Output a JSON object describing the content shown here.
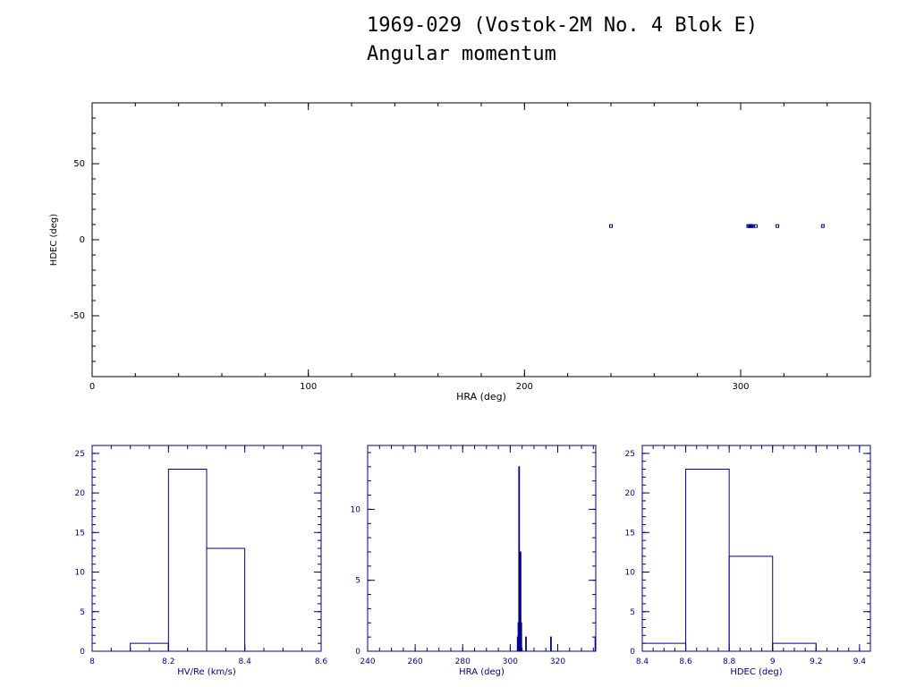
{
  "title": "1969-029 (Vostok-2M No. 4 Blok E)",
  "subtitle": "Angular momentum",
  "colors": {
    "axes_main": "#000000",
    "axes_hist": "#00008b",
    "data": "#00008b"
  },
  "chart_data": [
    {
      "type": "scatter",
      "xlabel": "HRA (deg)",
      "ylabel": "HDEC (deg)",
      "xlim": [
        0,
        360
      ],
      "ylim": [
        -90,
        90
      ],
      "xticks": [
        0,
        100,
        200,
        300
      ],
      "yticks": [
        -50,
        0,
        50
      ],
      "points": [
        {
          "x": 240,
          "y": 9
        },
        {
          "x": 303.5,
          "y": 9
        },
        {
          "x": 304,
          "y": 9
        },
        {
          "x": 304.5,
          "y": 9
        },
        {
          "x": 305,
          "y": 9
        },
        {
          "x": 305.5,
          "y": 9
        },
        {
          "x": 307,
          "y": 9
        },
        {
          "x": 317,
          "y": 9
        },
        {
          "x": 338,
          "y": 9
        }
      ]
    },
    {
      "type": "bar",
      "xlabel": "HV/Re (km/s)",
      "ylabel": "",
      "xlim": [
        8,
        8.6
      ],
      "ylim": [
        0,
        26
      ],
      "xticks": [
        8,
        8.2,
        8.4,
        8.6
      ],
      "xticklabels": [
        "8",
        "8.2",
        "8.4",
        "8.6"
      ],
      "yticks": [
        0,
        5,
        10,
        15,
        20,
        25
      ],
      "bins": [
        {
          "from": 8.1,
          "to": 8.2,
          "count": 1
        },
        {
          "from": 8.2,
          "to": 8.3,
          "count": 23
        },
        {
          "from": 8.3,
          "to": 8.4,
          "count": 13
        }
      ]
    },
    {
      "type": "bar",
      "xlabel": "HRA (deg)",
      "ylabel": "",
      "xlim": [
        240,
        336
      ],
      "ylim": [
        0,
        14.5
      ],
      "xticks": [
        240,
        260,
        280,
        300,
        320
      ],
      "xticklabels": [
        "240",
        "260",
        "280",
        "300",
        "320"
      ],
      "yticks": [
        0,
        5,
        10
      ],
      "bins": [
        {
          "from": 303.0,
          "to": 303.3,
          "count": 1
        },
        {
          "from": 303.3,
          "to": 303.6,
          "count": 2
        },
        {
          "from": 303.6,
          "to": 303.9,
          "count": 13
        },
        {
          "from": 303.9,
          "to": 304.2,
          "count": 7
        },
        {
          "from": 304.2,
          "to": 304.5,
          "count": 7
        },
        {
          "from": 304.5,
          "to": 304.8,
          "count": 2
        },
        {
          "from": 306.5,
          "to": 306.8,
          "count": 1
        },
        {
          "from": 317.0,
          "to": 317.3,
          "count": 1
        },
        {
          "from": 335.7,
          "to": 336.0,
          "count": 1
        }
      ]
    },
    {
      "type": "bar",
      "xlabel": "HDEC (deg)",
      "ylabel": "",
      "xlim": [
        8.4,
        9.45
      ],
      "ylim": [
        0,
        26
      ],
      "xticks": [
        8.4,
        8.6,
        8.8,
        9,
        9.2,
        9.4
      ],
      "xticklabels": [
        "8.4",
        "8.6",
        "8.8",
        "9",
        "9.2",
        "9.4"
      ],
      "yticks": [
        0,
        5,
        10,
        15,
        20,
        25
      ],
      "bins": [
        {
          "from": 8.4,
          "to": 8.6,
          "count": 1
        },
        {
          "from": 8.6,
          "to": 8.8,
          "count": 23
        },
        {
          "from": 8.8,
          "to": 9.0,
          "count": 12
        },
        {
          "from": 9.0,
          "to": 9.2,
          "count": 1
        }
      ]
    }
  ]
}
